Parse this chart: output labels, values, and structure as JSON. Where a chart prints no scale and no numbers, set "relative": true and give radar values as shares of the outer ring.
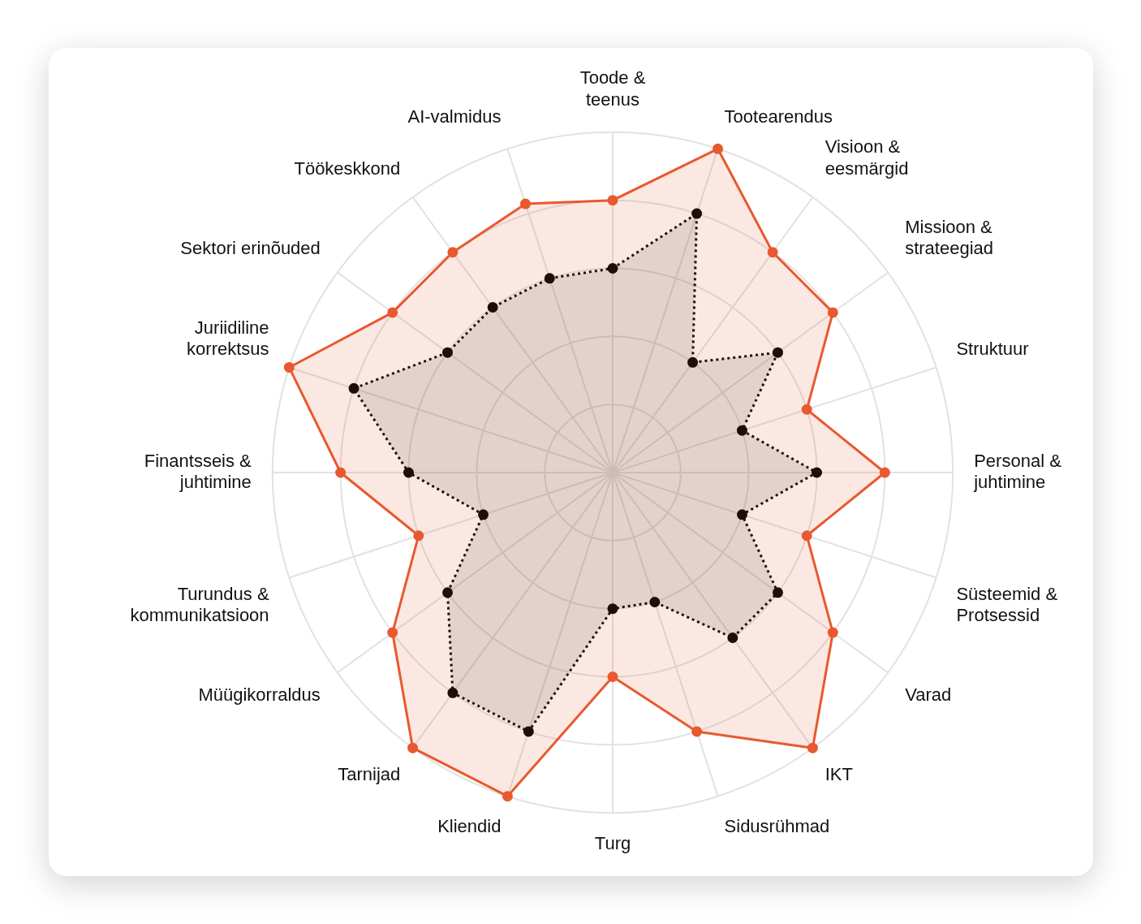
{
  "chart_data": {
    "type": "radar",
    "relative": true,
    "legend": false,
    "grid": true,
    "marker": "circle",
    "categories": [
      "Toode &\nteenus",
      "Tootearendus",
      "Visioon &\neesmärgid",
      "Missioon &\nstrateegiad",
      "Struktuur",
      "Personal &\njuhtimine",
      "Süsteemid &\nProtsessid",
      "Varad",
      "IKT",
      "Sidusrühmad",
      "Turg",
      "Kliendid",
      "Tarnijad",
      "Müügikorraldus",
      "Turundus &\nkommunikatsioon",
      "Finantsseis &\njuhtimine",
      "Juriidiline\nkorrektsus",
      "Sektori erinõuded",
      "Töökeskkond",
      "AI-valmidus"
    ],
    "series": [
      {
        "color": "#e8592f",
        "line_style": "solid",
        "values": [
          0.8,
          1.0,
          0.8,
          0.8,
          0.6,
          0.8,
          0.6,
          0.8,
          1.0,
          0.8,
          0.6,
          1.0,
          1.0,
          0.8,
          0.6,
          0.8,
          1.0,
          0.8,
          0.8,
          0.83
        ]
      },
      {
        "color": "#000000",
        "line_style": "dotted",
        "values": [
          0.6,
          0.8,
          0.4,
          0.6,
          0.4,
          0.6,
          0.4,
          0.6,
          0.6,
          0.4,
          0.4,
          0.8,
          0.8,
          0.6,
          0.4,
          0.6,
          0.8,
          0.6,
          0.6,
          0.6
        ]
      }
    ]
  }
}
